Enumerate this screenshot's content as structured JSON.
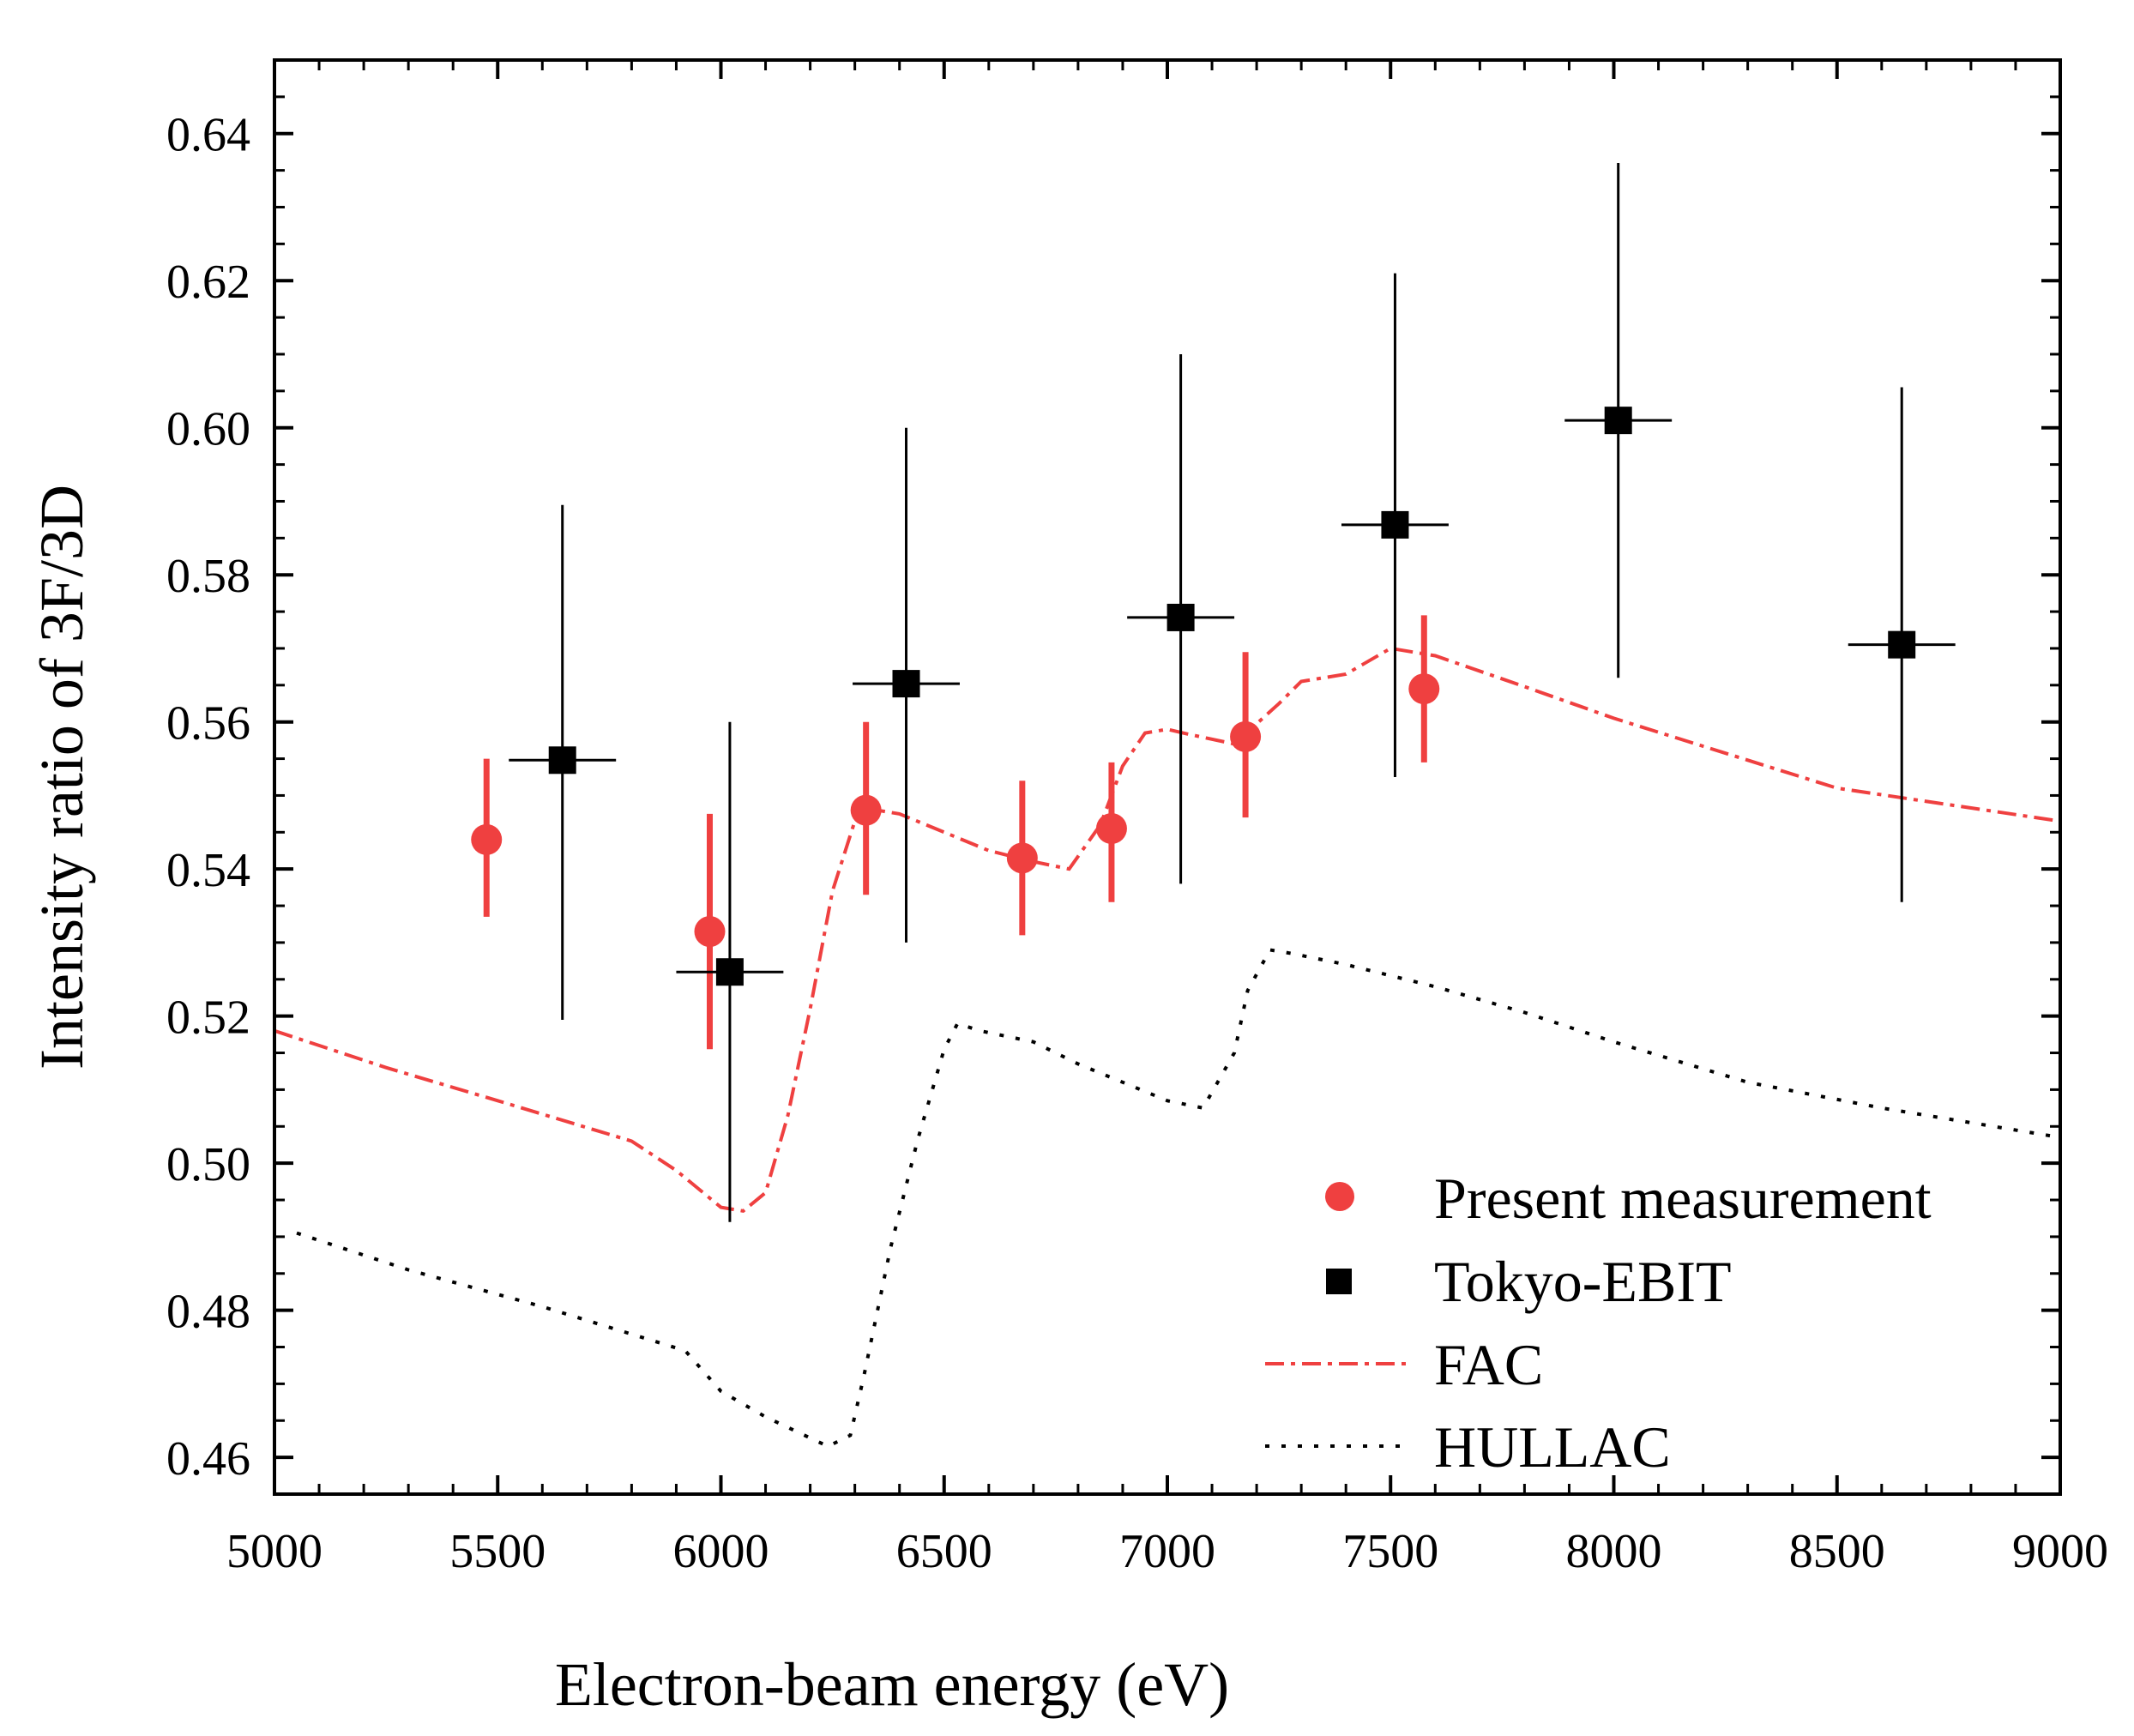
{
  "chart_data": {
    "type": "scatter",
    "title": "",
    "xlabel": "Electron-beam energy (eV)",
    "ylabel": "Intensity ratio of 3F/3D",
    "xlim": [
      5000,
      9000
    ],
    "ylim": [
      0.455,
      0.65
    ],
    "xticks": [
      5000,
      5500,
      6000,
      6500,
      7000,
      7500,
      8000,
      8500,
      9000
    ],
    "xtick_labels": [
      "5000",
      "5500",
      "6000",
      "6500",
      "7000",
      "7500",
      "8000",
      "8500",
      "9000"
    ],
    "yticks": [
      0.46,
      0.48,
      0.5,
      0.52,
      0.54,
      0.56,
      0.58,
      0.6,
      0.62,
      0.64
    ],
    "ytick_labels": [
      "0.46",
      "0.48",
      "0.50",
      "0.52",
      "0.54",
      "0.56",
      "0.58",
      "0.60",
      "0.62",
      "0.64"
    ],
    "legend_position": "bottom-right",
    "series": [
      {
        "name": "Present measurement",
        "kind": "points",
        "marker": "circle",
        "color": "#ef4040",
        "points": [
          {
            "x": 5475,
            "y": 0.544,
            "xerr": 30,
            "ylo": 0.5335,
            "yhi": 0.555
          },
          {
            "x": 5975,
            "y": 0.5315,
            "xerr": 30,
            "ylo": 0.5155,
            "yhi": 0.5475
          },
          {
            "x": 6325,
            "y": 0.548,
            "xerr": 30,
            "ylo": 0.5365,
            "yhi": 0.56
          },
          {
            "x": 6675,
            "y": 0.5415,
            "xerr": 30,
            "ylo": 0.531,
            "yhi": 0.552
          },
          {
            "x": 6875,
            "y": 0.5455,
            "xerr": 30,
            "ylo": 0.5355,
            "yhi": 0.5545
          },
          {
            "x": 7175,
            "y": 0.558,
            "xerr": 30,
            "ylo": 0.547,
            "yhi": 0.5695
          },
          {
            "x": 7575,
            "y": 0.5645,
            "xerr": 30,
            "ylo": 0.5545,
            "yhi": 0.5745
          }
        ]
      },
      {
        "name": "Tokyo-EBIT",
        "kind": "points",
        "marker": "square",
        "color": "#000000",
        "points": [
          {
            "x": 5645,
            "y": 0.5548,
            "xerr": 120,
            "ylo": 0.5195,
            "yhi": 0.5895
          },
          {
            "x": 6020,
            "y": 0.526,
            "xerr": 120,
            "ylo": 0.492,
            "yhi": 0.56
          },
          {
            "x": 6415,
            "y": 0.5652,
            "xerr": 120,
            "ylo": 0.53,
            "yhi": 0.6
          },
          {
            "x": 7030,
            "y": 0.5742,
            "xerr": 120,
            "ylo": 0.538,
            "yhi": 0.61
          },
          {
            "x": 7510,
            "y": 0.5868,
            "xerr": 120,
            "ylo": 0.5525,
            "yhi": 0.621
          },
          {
            "x": 8010,
            "y": 0.601,
            "xerr": 120,
            "ylo": 0.566,
            "yhi": 0.636
          },
          {
            "x": 8645,
            "y": 0.5705,
            "xerr": 120,
            "ylo": 0.5355,
            "yhi": 0.6055
          }
        ]
      },
      {
        "name": "FAC",
        "kind": "line",
        "style": "dashdot",
        "color": "#ef4040",
        "x": [
          5000,
          5250,
          5500,
          5800,
          5900,
          6000,
          6050,
          6100,
          6150,
          6200,
          6250,
          6300,
          6350,
          6400,
          6500,
          6600,
          6700,
          6780,
          6850,
          6900,
          6950,
          7000,
          7050,
          7150,
          7250,
          7300,
          7400,
          7500,
          7600,
          7800,
          8000,
          8500,
          9000
        ],
        "y": [
          0.518,
          0.513,
          0.5085,
          0.503,
          0.499,
          0.494,
          0.4935,
          0.496,
          0.5065,
          0.521,
          0.537,
          0.5465,
          0.548,
          0.5475,
          0.545,
          0.5425,
          0.541,
          0.54,
          0.546,
          0.554,
          0.5585,
          0.559,
          0.5583,
          0.557,
          0.5625,
          0.5655,
          0.5665,
          0.57,
          0.569,
          0.5648,
          0.5605,
          0.551,
          0.5465
        ]
      },
      {
        "name": "HULLAC",
        "kind": "line",
        "style": "dotted",
        "color": "#000000",
        "x": [
          5050,
          5300,
          5600,
          5920,
          6000,
          6100,
          6240,
          6290,
          6320,
          6380,
          6440,
          6500,
          6530,
          6580,
          6700,
          6800,
          6900,
          7000,
          7080,
          7150,
          7180,
          7230,
          7280,
          7400,
          7600,
          7800,
          8000,
          8300,
          8600,
          9000
        ],
        "y": [
          0.4905,
          0.4855,
          0.4805,
          0.4745,
          0.469,
          0.4655,
          0.4615,
          0.463,
          0.471,
          0.4885,
          0.503,
          0.5155,
          0.519,
          0.518,
          0.5165,
          0.5135,
          0.511,
          0.5085,
          0.5075,
          0.515,
          0.5235,
          0.529,
          0.5285,
          0.527,
          0.524,
          0.5205,
          0.5165,
          0.511,
          0.5075,
          0.5035
        ]
      }
    ]
  }
}
